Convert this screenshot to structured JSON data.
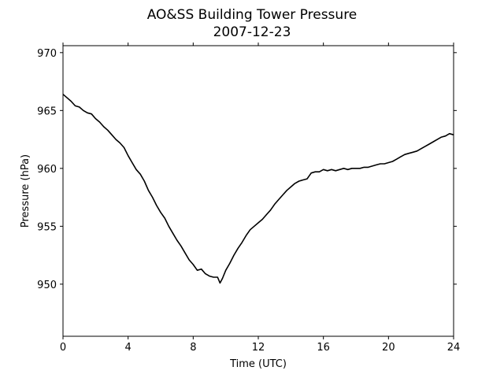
{
  "chart_data": {
    "type": "line",
    "title": "AO&SS Building Tower Pressure",
    "subtitle": "2007-12-23",
    "xlabel": "Time (UTC)",
    "ylabel": "Pressure (hPa)",
    "xlim": [
      0,
      24
    ],
    "ylim": [
      945.5,
      970.6
    ],
    "x_ticks": [
      0,
      4,
      8,
      12,
      16,
      20,
      24
    ],
    "y_ticks": [
      950,
      955,
      960,
      965,
      970
    ],
    "grid": false,
    "series": [
      {
        "color": "#000000",
        "x": [
          0,
          0.25,
          0.5,
          0.75,
          1.0,
          1.25,
          1.5,
          1.75,
          2.0,
          2.25,
          2.5,
          2.75,
          3.0,
          3.25,
          3.5,
          3.75,
          4.0,
          4.25,
          4.5,
          4.75,
          5.0,
          5.25,
          5.5,
          5.75,
          6.0,
          6.25,
          6.5,
          6.75,
          7.0,
          7.25,
          7.5,
          7.75,
          8.0,
          8.25,
          8.5,
          8.75,
          9.0,
          9.25,
          9.5,
          9.65,
          9.8,
          10.0,
          10.25,
          10.5,
          10.75,
          11.0,
          11.25,
          11.5,
          11.75,
          12.0,
          12.25,
          12.5,
          12.75,
          13.0,
          13.25,
          13.5,
          13.75,
          14.0,
          14.25,
          14.5,
          14.75,
          15.0,
          15.25,
          15.5,
          15.75,
          16.0,
          16.25,
          16.5,
          16.75,
          17.0,
          17.25,
          17.5,
          17.75,
          18.0,
          18.25,
          18.5,
          18.75,
          19.0,
          19.25,
          19.5,
          19.75,
          20.0,
          20.25,
          20.5,
          20.75,
          21.0,
          21.25,
          21.5,
          21.75,
          22.0,
          22.25,
          22.5,
          22.75,
          23.0,
          23.25,
          23.5,
          23.75,
          24.0
        ],
        "y": [
          966.4,
          966.1,
          965.8,
          965.4,
          965.3,
          965.0,
          964.8,
          964.7,
          964.3,
          964.0,
          963.6,
          963.3,
          962.9,
          962.5,
          962.2,
          961.8,
          961.1,
          960.5,
          959.9,
          959.5,
          958.9,
          958.1,
          957.5,
          956.8,
          956.2,
          955.7,
          955.0,
          954.4,
          953.8,
          953.3,
          952.7,
          952.1,
          951.7,
          951.2,
          951.3,
          950.9,
          950.7,
          950.6,
          950.6,
          950.1,
          950.5,
          951.2,
          951.8,
          952.5,
          953.1,
          953.6,
          954.2,
          954.7,
          955.0,
          955.3,
          955.6,
          956.0,
          956.4,
          956.9,
          957.3,
          957.7,
          958.1,
          958.4,
          958.7,
          958.9,
          959.0,
          959.1,
          959.6,
          959.7,
          959.7,
          959.9,
          959.8,
          959.9,
          959.8,
          959.9,
          960.0,
          959.9,
          960.0,
          960.0,
          960.0,
          960.1,
          960.1,
          960.2,
          960.3,
          960.4,
          960.4,
          960.5,
          960.6,
          960.8,
          961.0,
          961.2,
          961.3,
          961.4,
          961.5,
          961.7,
          961.9,
          962.1,
          962.3,
          962.5,
          962.7,
          962.8,
          963.0,
          962.9
        ]
      }
    ]
  }
}
